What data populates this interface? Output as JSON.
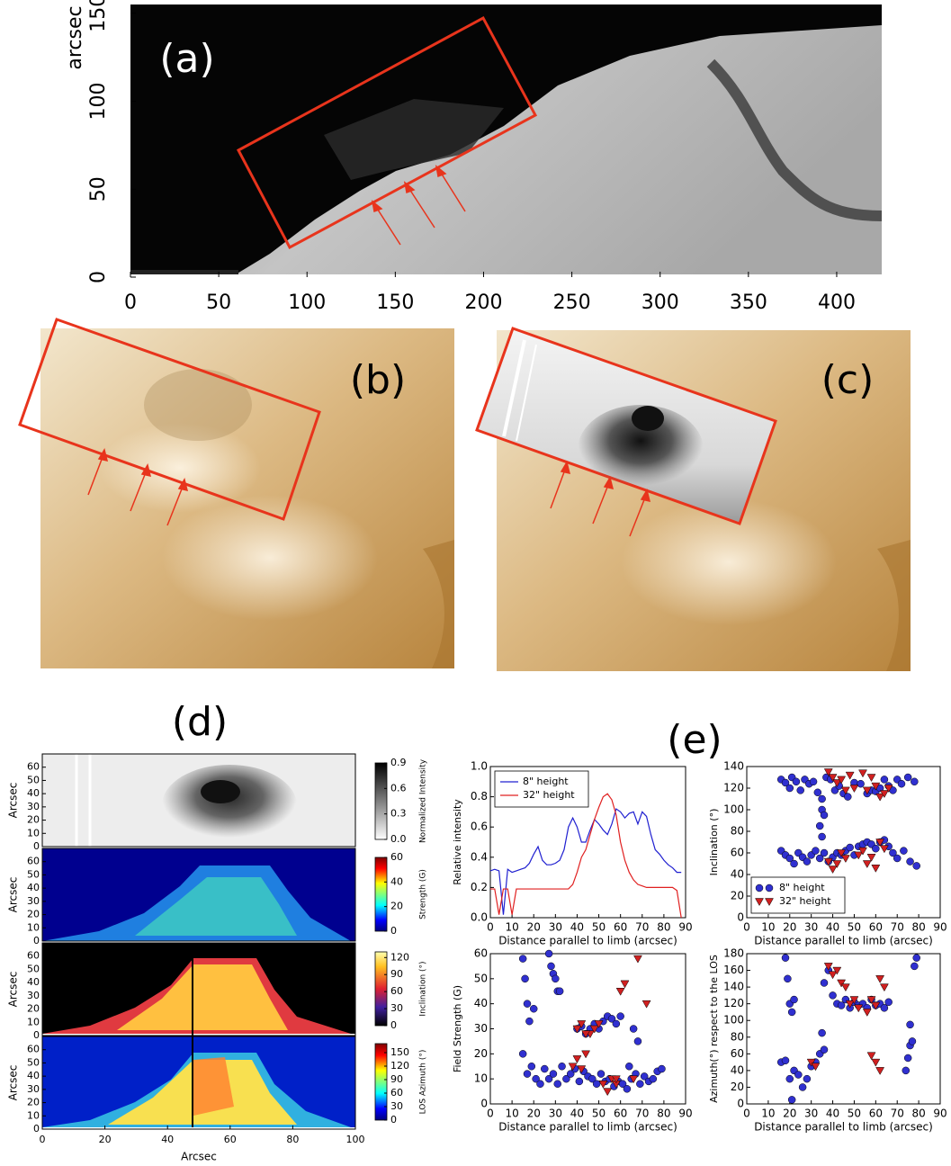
{
  "chart_data": [
    {
      "type": "image",
      "label": "(a)",
      "ylabel": "arcsec",
      "xlim": [
        0,
        425.5
      ],
      "ylim": [
        0,
        155
      ],
      "xticks": [
        0,
        50,
        100,
        150,
        200,
        250,
        300,
        350,
        400
      ],
      "yticks": [
        0,
        50,
        100,
        150
      ]
    },
    {
      "type": "image",
      "label": "(b)"
    },
    {
      "type": "image",
      "label": "(c)"
    },
    {
      "type": "heatmap-stack",
      "label": "(d)",
      "xlabel": "Arcsec",
      "xlim": [
        0,
        100
      ],
      "xticks": [
        0,
        20,
        40,
        60,
        80,
        100
      ],
      "panels": [
        {
          "ylabel": "Arcsec",
          "ylim": [
            0,
            70
          ],
          "yticks": [
            0,
            10,
            20,
            30,
            40,
            50,
            60
          ],
          "colorbar": {
            "label": "Normalized Intensity",
            "lim": [
              0,
              0.9
            ],
            "ticks": [
              {
                "value": 0,
                "label": "0.0"
              },
              0.3,
              0.6,
              0.9
            ],
            "colormap": "grey"
          }
        },
        {
          "ylabel": "Arcsec",
          "ylim": [
            0,
            70
          ],
          "yticks": [
            0,
            10,
            20,
            30,
            40,
            50,
            60
          ],
          "colorbar": {
            "label": "Strength (G)",
            "lim": [
              0,
              60
            ],
            "ticks": [
              0,
              20,
              40,
              60
            ],
            "colormap": "jet"
          }
        },
        {
          "ylabel": "Arcsec",
          "ylim": [
            0,
            70
          ],
          "yticks": [
            0,
            10,
            20,
            30,
            40,
            50,
            60
          ],
          "colorbar": {
            "label": "Inclination (°)",
            "lim": [
              0,
              130
            ],
            "ticks": [
              0,
              30,
              60,
              90,
              120
            ],
            "colormap": "heat"
          }
        },
        {
          "ylabel": "Arcsec",
          "ylim": [
            0,
            70
          ],
          "yticks": [
            0,
            10,
            20,
            30,
            40,
            50,
            60
          ],
          "colorbar": {
            "label": "LOS Azimuth (°)",
            "lim": [
              0,
              170
            ],
            "ticks": [
              0,
              30,
              60,
              90,
              120,
              150
            ],
            "colormap": "jet"
          }
        }
      ]
    },
    {
      "type": "group",
      "label": "(e)",
      "charts": [
        {
          "type": "line",
          "xlabel": "Distance parallel to limb (arcsec)",
          "ylabel": "Relative intensity",
          "xlim": [
            0,
            90
          ],
          "ylim": [
            0,
            1
          ],
          "xticks": [
            0,
            10,
            20,
            30,
            40,
            50,
            60,
            70,
            80,
            90
          ],
          "yticks": [
            {
              "value": 0,
              "label": "0.0"
            },
            0.2,
            0.4,
            0.6,
            0.8,
            {
              "value": 1,
              "label": "1.0"
            }
          ],
          "legend": "upper left",
          "x": [
            0,
            2,
            4,
            6,
            8,
            10,
            12,
            14,
            16,
            18,
            20,
            22,
            24,
            26,
            28,
            30,
            32,
            34,
            36,
            38,
            40,
            42,
            44,
            46,
            48,
            50,
            52,
            54,
            56,
            58,
            60,
            62,
            64,
            66,
            68,
            70,
            72,
            74,
            76,
            78,
            80,
            82,
            84,
            86,
            88
          ],
          "series": [
            {
              "name": "8\" height",
              "color": "#2020d0",
              "values": [
                0.31,
                0.32,
                0.31,
                0.02,
                0.32,
                0.3,
                0.31,
                0.32,
                0.33,
                0.36,
                0.42,
                0.47,
                0.38,
                0.35,
                0.35,
                0.36,
                0.38,
                0.45,
                0.6,
                0.66,
                0.6,
                0.5,
                0.5,
                0.58,
                0.65,
                0.62,
                0.58,
                0.55,
                0.62,
                0.72,
                0.7,
                0.66,
                0.69,
                0.7,
                0.62,
                0.7,
                0.67,
                0.55,
                0.45,
                0.42,
                0.38,
                0.35,
                0.33,
                0.3,
                0.3
              ]
            },
            {
              "name": "32\" height",
              "color": "#e02020",
              "values": [
                0.19,
                0.19,
                0.02,
                0.19,
                0.19,
                0.02,
                0.19,
                0.19,
                0.19,
                0.19,
                0.19,
                0.19,
                0.19,
                0.19,
                0.19,
                0.19,
                0.19,
                0.19,
                0.19,
                0.22,
                0.3,
                0.4,
                0.45,
                0.55,
                0.65,
                0.73,
                0.8,
                0.82,
                0.78,
                0.68,
                0.5,
                0.38,
                0.3,
                0.25,
                0.22,
                0.21,
                0.2,
                0.2,
                0.2,
                0.2,
                0.2,
                0.2,
                0.2,
                0.18,
                0.0
              ]
            }
          ]
        },
        {
          "type": "scatter",
          "xlabel": "Distance parallel to limb (arcsec)",
          "ylabel": "Inclination (°)",
          "xlim": [
            0,
            90
          ],
          "ylim": [
            0,
            140
          ],
          "xticks": [
            0,
            10,
            20,
            30,
            40,
            50,
            60,
            70,
            80,
            90
          ],
          "yticks": [
            0,
            20,
            40,
            60,
            80,
            100,
            120,
            140
          ],
          "legend": "lower left",
          "series": [
            {
              "name": "8\" height",
              "color": "#3030d0",
              "marker": "o",
              "x": [
                16,
                18,
                20,
                21,
                23,
                25,
                27,
                29,
                31,
                33,
                35,
                37,
                39,
                41,
                43,
                45,
                47,
                50,
                53,
                56,
                58,
                60,
                62,
                64,
                66,
                68,
                70,
                72,
                75,
                78,
                16,
                18,
                20,
                22,
                24,
                26,
                28,
                30,
                32,
                34,
                35,
                36,
                38,
                40,
                42,
                44,
                46,
                48,
                50,
                52,
                54,
                56,
                58,
                60,
                62,
                64,
                66,
                68,
                70,
                73,
                76,
                79,
                34,
                35,
                36
              ],
              "values": [
                128,
                125,
                120,
                130,
                126,
                118,
                128,
                124,
                126,
                116,
                110,
                130,
                128,
                118,
                122,
                115,
                112,
                125,
                124,
                115,
                118,
                117,
                120,
                128,
                122,
                118,
                128,
                124,
                130,
                126,
                62,
                58,
                55,
                50,
                60,
                56,
                52,
                58,
                62,
                55,
                75,
                60,
                52,
                56,
                60,
                58,
                62,
                65,
                58,
                66,
                68,
                70,
                68,
                64,
                70,
                72,
                66,
                60,
                55,
                62,
                52,
                48,
                85,
                100,
                95
              ]
            },
            {
              "name": "32\" height",
              "color": "#d02020",
              "marker": "v",
              "x": [
                38,
                40,
                42,
                44,
                46,
                48,
                50,
                54,
                56,
                58,
                60,
                62,
                64,
                66,
                38,
                40,
                42,
                44,
                46,
                52,
                54,
                56,
                58,
                60,
                62,
                64
              ],
              "values": [
                135,
                130,
                125,
                128,
                118,
                132,
                120,
                134,
                118,
                130,
                122,
                112,
                115,
                120,
                52,
                45,
                50,
                60,
                55,
                58,
                62,
                50,
                56,
                46,
                70,
                64
              ]
            }
          ]
        },
        {
          "type": "scatter",
          "xlabel": "Distance parallel to limb (arcsec)",
          "ylabel": "Field Strength (G)",
          "xlim": [
            0,
            90
          ],
          "ylim": [
            0,
            60
          ],
          "xticks": [
            0,
            10,
            20,
            30,
            40,
            50,
            60,
            70,
            80,
            90
          ],
          "yticks": [
            0,
            10,
            20,
            30,
            40,
            50,
            60
          ],
          "series": [
            {
              "color": "#3030d0",
              "marker": "o",
              "x": [
                15,
                16,
                17,
                18,
                20,
                27,
                28,
                29,
                30,
                31,
                32,
                40,
                42,
                44,
                46,
                48,
                50,
                52,
                54,
                56,
                58,
                60,
                64,
                66,
                68,
                15,
                17,
                19,
                21,
                23,
                25,
                27,
                29,
                31,
                33,
                35,
                37,
                39,
                41,
                43,
                45,
                47,
                49,
                51,
                53,
                55,
                57,
                59,
                61,
                63,
                65,
                67,
                69,
                71,
                73,
                75,
                77,
                79
              ],
              "values": [
                58,
                50,
                40,
                33,
                38,
                60,
                55,
                52,
                50,
                45,
                45,
                30,
                31,
                28,
                30,
                32,
                30,
                33,
                35,
                34,
                32,
                35,
                15,
                30,
                25,
                20,
                12,
                15,
                10,
                8,
                14,
                10,
                12,
                8,
                15,
                10,
                12,
                14,
                9,
                13,
                11,
                10,
                8,
                12,
                9,
                10,
                7,
                9,
                8,
                6,
                10,
                12,
                8,
                11,
                9,
                10,
                13,
                14
              ]
            },
            {
              "color": "#d02020",
              "marker": "v",
              "x": [
                38,
                40,
                42,
                44,
                46,
                48,
                50,
                56,
                58,
                60,
                62,
                66,
                68,
                72,
                40,
                42,
                44,
                52,
                54,
                58
              ],
              "values": [
                15,
                18,
                14,
                20,
                28,
                30,
                32,
                10,
                8,
                45,
                48,
                10,
                58,
                40,
                30,
                32,
                28,
                8,
                5,
                10
              ]
            }
          ]
        },
        {
          "type": "scatter",
          "xlabel": "Distance parallel to limb (arcsec)",
          "ylabel": "Azimuth(°) respect to the LOS",
          "xlim": [
            0,
            90
          ],
          "ylim": [
            0,
            180
          ],
          "xticks": [
            0,
            10,
            20,
            30,
            40,
            50,
            60,
            70,
            80,
            90
          ],
          "yticks": [
            0,
            20,
            40,
            60,
            80,
            100,
            120,
            140,
            160,
            180
          ],
          "series": [
            {
              "color": "#3030d0",
              "marker": "o",
              "x": [
                18,
                19,
                20,
                21,
                22,
                36,
                38,
                40,
                42,
                44,
                46,
                48,
                50,
                52,
                54,
                56,
                58,
                60,
                62,
                64,
                66,
                76,
                78,
                79,
                16,
                18,
                20,
                21,
                22,
                24,
                26,
                28,
                30,
                32,
                34,
                35,
                36,
                74,
                75,
                76,
                77
              ],
              "values": [
                175,
                150,
                120,
                110,
                125,
                145,
                160,
                130,
                120,
                118,
                125,
                115,
                122,
                118,
                120,
                115,
                125,
                118,
                120,
                115,
                122,
                95,
                165,
                175,
                50,
                52,
                30,
                5,
                40,
                35,
                20,
                30,
                45,
                50,
                60,
                85,
                65,
                40,
                55,
                70,
                75
              ]
            },
            {
              "color": "#d02020",
              "marker": "v",
              "x": [
                38,
                40,
                42,
                44,
                46,
                48,
                50,
                52,
                56,
                58,
                60,
                62,
                64,
                30,
                32,
                58,
                60,
                62
              ],
              "values": [
                165,
                155,
                160,
                145,
                140,
                120,
                125,
                115,
                110,
                125,
                118,
                150,
                140,
                50,
                45,
                58,
                50,
                40
              ]
            }
          ]
        }
      ]
    }
  ]
}
